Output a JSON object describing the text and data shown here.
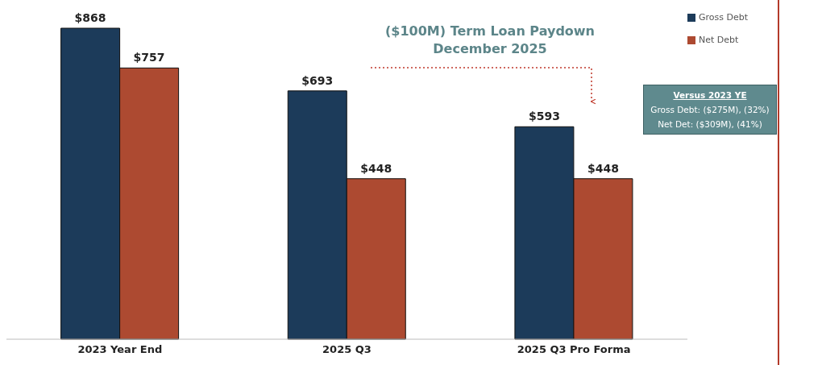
{
  "chart_data": {
    "type": "bar",
    "categories": [
      "2023 Year End",
      "2025 Q3",
      "2025 Q3 Pro Forma"
    ],
    "series": [
      {
        "name": "Gross Debt",
        "color": "#1c3b5a",
        "values": [
          868,
          693,
          593
        ],
        "value_labels": [
          "$868",
          "$693",
          "$593"
        ]
      },
      {
        "name": "Net Debt",
        "color": "#ad4a31",
        "values": [
          757,
          448,
          448
        ],
        "value_labels": [
          "$757",
          "$448",
          "$448"
        ]
      }
    ],
    "annotations": [
      "($100M) Term Loan Paydown\nDecember 2025",
      "Versus 2023 YE",
      "Gross Debt: ($275M), (32%)",
      "Net Det: ($309M), (41%)"
    ],
    "legend": "top right"
  }
}
